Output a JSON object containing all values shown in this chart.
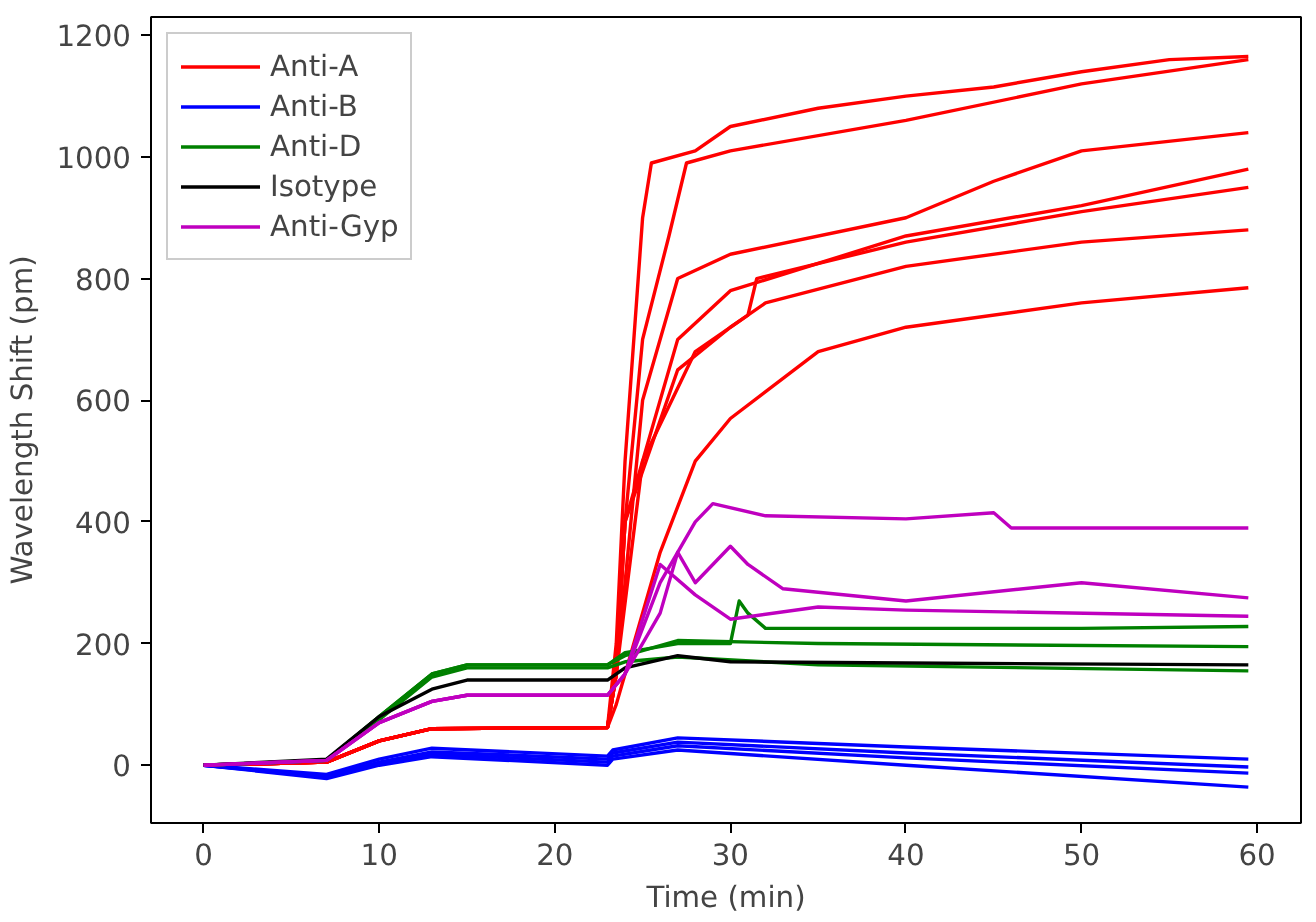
{
  "chart_data": {
    "type": "line",
    "xlabel": "Time (min)",
    "ylabel": "Wavelength Shift (pm)",
    "xlim": [
      -3,
      62.5
    ],
    "ylim": [
      -95,
      1230
    ],
    "xticks": [
      0,
      10,
      20,
      30,
      40,
      50,
      60
    ],
    "yticks": [
      0,
      200,
      400,
      600,
      800,
      1000,
      1200
    ],
    "grid": false,
    "legend": "top left",
    "line_style": "solid",
    "series": [
      {
        "name": "Anti-A",
        "color": "#ff0000",
        "x": [
          0,
          7,
          10,
          13,
          23,
          23.5,
          24,
          25,
          25.5,
          28,
          30,
          35,
          40,
          45,
          50,
          55,
          59.5
        ],
        "values": [
          0,
          5,
          40,
          60,
          62,
          200,
          500,
          900,
          990,
          1010,
          1050,
          1080,
          1100,
          1115,
          1140,
          1160,
          1165
        ]
      },
      {
        "color": "#ff0000",
        "x": [
          0,
          7,
          10,
          13,
          23,
          23.5,
          24,
          25,
          26.5,
          27.5,
          30,
          40,
          50,
          59.5
        ],
        "values": [
          0,
          5,
          40,
          60,
          62,
          150,
          400,
          700,
          870,
          990,
          1010,
          1060,
          1120,
          1160
        ]
      },
      {
        "color": "#ff0000",
        "x": [
          0,
          7,
          10,
          13,
          23,
          23.5,
          25,
          27,
          30,
          40,
          45,
          50,
          59.5
        ],
        "values": [
          0,
          5,
          40,
          60,
          62,
          150,
          600,
          800,
          840,
          900,
          960,
          1010,
          1040
        ]
      },
      {
        "color": "#ff0000",
        "x": [
          0,
          7,
          10,
          13,
          23,
          23.5,
          24,
          27,
          30,
          40,
          50,
          59.5
        ],
        "values": [
          0,
          5,
          40,
          60,
          62,
          150,
          400,
          700,
          780,
          870,
          920,
          980
        ]
      },
      {
        "color": "#ff0000",
        "x": [
          0,
          7,
          10,
          13,
          23,
          23.5,
          24,
          27,
          30,
          31,
          31.5,
          40,
          50,
          59.5
        ],
        "values": [
          0,
          5,
          40,
          60,
          62,
          150,
          400,
          650,
          720,
          740,
          800,
          860,
          910,
          950
        ]
      },
      {
        "color": "#ff0000",
        "x": [
          0,
          7,
          10,
          13,
          23,
          23.5,
          25,
          28,
          32,
          40,
          50,
          59.5
        ],
        "values": [
          0,
          5,
          40,
          60,
          62,
          150,
          500,
          680,
          760,
          820,
          860,
          880
        ]
      },
      {
        "color": "#ff0000",
        "x": [
          0,
          7,
          10,
          13,
          23,
          23.5,
          24,
          26,
          28,
          30,
          35,
          40,
          50,
          59.5
        ],
        "values": [
          0,
          5,
          40,
          60,
          62,
          100,
          150,
          350,
          500,
          570,
          680,
          720,
          760,
          785
        ]
      },
      {
        "name": "Anti-B",
        "color": "#0000ff",
        "x": [
          0,
          7,
          10,
          13,
          23,
          23.3,
          27,
          40,
          59.5
        ],
        "values": [
          0,
          -15,
          10,
          28,
          15,
          25,
          45,
          30,
          10
        ]
      },
      {
        "color": "#0000ff",
        "x": [
          0,
          7,
          10,
          13,
          23,
          23.3,
          27,
          40,
          59.5
        ],
        "values": [
          0,
          -18,
          5,
          22,
          10,
          20,
          38,
          20,
          -3
        ]
      },
      {
        "color": "#0000ff",
        "x": [
          0,
          7,
          10,
          13,
          23,
          23.3,
          27,
          40,
          59.5
        ],
        "values": [
          0,
          -20,
          2,
          18,
          5,
          15,
          32,
          12,
          -13
        ]
      },
      {
        "color": "#0000ff",
        "x": [
          0,
          7,
          10,
          13,
          23,
          23.3,
          27,
          40,
          59.5
        ],
        "values": [
          0,
          -22,
          0,
          14,
          0,
          10,
          25,
          0,
          -36
        ]
      },
      {
        "name": "Anti-D",
        "color": "#008000",
        "x": [
          0,
          7,
          10,
          13,
          15,
          23,
          24,
          27,
          30,
          30.5,
          31,
          32,
          40,
          50,
          59.5
        ],
        "values": [
          0,
          8,
          80,
          150,
          165,
          165,
          185,
          200,
          200,
          270,
          250,
          225,
          225,
          225,
          228
        ]
      },
      {
        "color": "#008000",
        "x": [
          0,
          7,
          10,
          13,
          15,
          23,
          24,
          27,
          35,
          59.5
        ],
        "values": [
          0,
          8,
          80,
          150,
          165,
          165,
          180,
          205,
          200,
          195
        ]
      },
      {
        "color": "#008000",
        "x": [
          0,
          7,
          10,
          13,
          15,
          23,
          24,
          27,
          35,
          59.5
        ],
        "values": [
          0,
          8,
          75,
          145,
          160,
          160,
          170,
          178,
          165,
          155
        ]
      },
      {
        "name": "Isotype",
        "color": "#000000",
        "x": [
          0,
          7,
          10,
          13,
          15,
          23,
          24,
          27,
          30,
          40,
          59.5
        ],
        "values": [
          0,
          10,
          80,
          125,
          140,
          140,
          160,
          180,
          170,
          168,
          165
        ]
      },
      {
        "name": "Anti-Gyp",
        "color": "#bf00bf",
        "x": [
          0,
          7,
          10,
          13,
          15,
          23,
          24,
          26,
          28,
          29,
          32,
          40,
          45,
          46,
          59.5
        ],
        "values": [
          0,
          8,
          70,
          105,
          115,
          115,
          150,
          300,
          400,
          430,
          410,
          405,
          415,
          390,
          390
        ]
      },
      {
        "color": "#bf00bf",
        "x": [
          0,
          7,
          10,
          13,
          15,
          23,
          24,
          26,
          27,
          28,
          30,
          31,
          33,
          40,
          50,
          59.5
        ],
        "values": [
          0,
          8,
          70,
          105,
          115,
          115,
          150,
          250,
          350,
          300,
          360,
          330,
          290,
          270,
          300,
          275
        ]
      },
      {
        "color": "#bf00bf",
        "x": [
          0,
          7,
          10,
          13,
          15,
          23,
          24,
          26,
          28,
          30,
          35,
          40,
          59.5
        ],
        "values": [
          0,
          8,
          70,
          105,
          115,
          115,
          150,
          330,
          280,
          240,
          260,
          255,
          245
        ]
      }
    ]
  }
}
